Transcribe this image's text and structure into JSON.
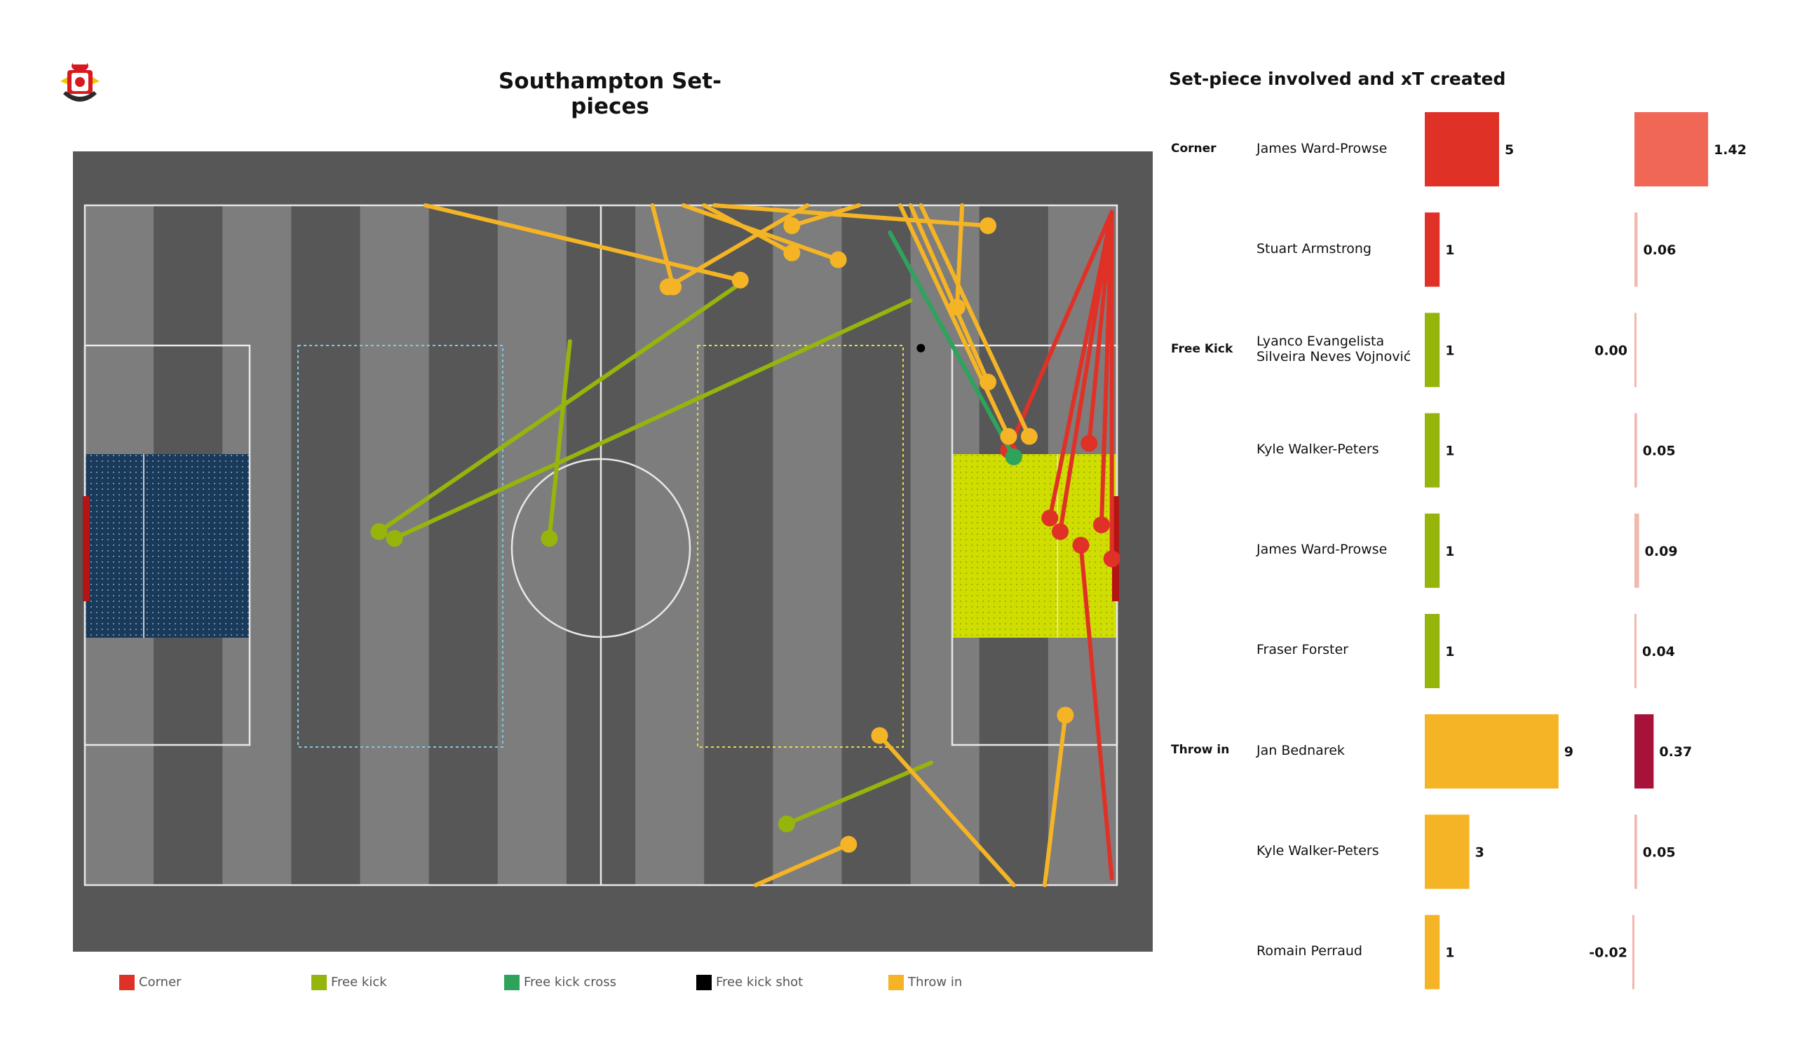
{
  "pitch_title": "Southampton Set-pieces",
  "table_title": "Set-piece involved and xT created",
  "logo": {
    "icon": "southampton-crest-icon"
  },
  "colors": {
    "corner": "#e03127",
    "free_kick": "#95b50d",
    "free_kick_cross": "#2ea35c",
    "free_kick_shot": "#000000",
    "throw_in": "#f4b425",
    "xt_positive_high": "#f06756",
    "xt_low": "#f1b8ac",
    "xt_throw_bednarek": "#a8123a",
    "pitch_outer": "#575757",
    "pitch_dark": "#575757",
    "pitch_light": "#7d7d7d",
    "left_zone": "#1a3a5c",
    "right_zone": "#cfdd00"
  },
  "legend": [
    {
      "label": "Corner",
      "color": "#e03127"
    },
    {
      "label": "Free kick",
      "color": "#95b50d"
    },
    {
      "label": "Free kick cross",
      "color": "#2ea35c"
    },
    {
      "label": "Free kick shot",
      "color": "#000000"
    },
    {
      "label": "Throw in",
      "color": "#f4b425"
    }
  ],
  "chart_data": [
    {
      "type": "scatter",
      "title": "Southampton Set-pieces",
      "x_range": [
        0,
        100
      ],
      "y_range": [
        0,
        100
      ],
      "series": [
        {
          "name": "Corner",
          "color": "#e03127",
          "events": [
            {
              "start": [
                99.5,
                1
              ],
              "end": [
                89.5,
                36
              ]
            },
            {
              "start": [
                99.5,
                1
              ],
              "end": [
                97.3,
                35
              ]
            },
            {
              "start": [
                99.5,
                1
              ],
              "end": [
                93.5,
                46
              ]
            },
            {
              "start": [
                99.5,
                1
              ],
              "end": [
                98.5,
                47
              ]
            },
            {
              "start": [
                99.5,
                1
              ],
              "end": [
                94.5,
                48
              ]
            },
            {
              "start": [
                99.5,
                1
              ],
              "end": [
                99.5,
                52
              ]
            },
            {
              "start": [
                99.5,
                99
              ],
              "end": [
                96.5,
                50
              ]
            }
          ]
        },
        {
          "name": "Free kick",
          "color": "#95b50d",
          "events": [
            {
              "start": [
                80,
                14
              ],
              "end": [
                30,
                49
              ]
            },
            {
              "start": [
                64,
                11
              ],
              "end": [
                28.5,
                48
              ]
            },
            {
              "start": [
                47,
                20
              ],
              "end": [
                45,
                49
              ]
            },
            {
              "start": [
                82,
                82
              ],
              "end": [
                68,
                91
              ]
            }
          ]
        },
        {
          "name": "Free kick cross",
          "color": "#2ea35c",
          "events": [
            {
              "start": [
                78,
                4
              ],
              "end": [
                90,
                37
              ]
            }
          ]
        },
        {
          "name": "Free kick shot",
          "color": "#000000",
          "events": [
            {
              "start": [
                81,
                21
              ],
              "end": [
                81,
                21
              ]
            }
          ]
        },
        {
          "name": "Throw in",
          "color": "#f4b425",
          "events": [
            {
              "start": [
                33,
                0
              ],
              "end": [
                63.5,
                11
              ]
            },
            {
              "start": [
                55,
                0
              ],
              "end": [
                57,
                12
              ]
            },
            {
              "start": [
                75,
                0
              ],
              "end": [
                68.5,
                3
              ]
            },
            {
              "start": [
                58,
                0
              ],
              "end": [
                73,
                8
              ]
            },
            {
              "start": [
                70,
                0
              ],
              "end": [
                56.5,
                12
              ]
            },
            {
              "start": [
                60,
                0
              ],
              "end": [
                68.5,
                7
              ]
            },
            {
              "start": [
                61,
                0
              ],
              "end": [
                87.5,
                3
              ]
            },
            {
              "start": [
                85,
                0
              ],
              "end": [
                84.5,
                15
              ]
            },
            {
              "start": [
                80,
                0
              ],
              "end": [
                87.5,
                26
              ]
            },
            {
              "start": [
                79,
                0
              ],
              "end": [
                89.5,
                34
              ]
            },
            {
              "start": [
                81,
                0
              ],
              "end": [
                91.5,
                34
              ]
            },
            {
              "start": [
                90,
                100
              ],
              "end": [
                77,
                78
              ]
            },
            {
              "start": [
                93,
                100
              ],
              "end": [
                95,
                75
              ]
            },
            {
              "start": [
                65,
                100
              ],
              "end": [
                74,
                94
              ]
            }
          ]
        }
      ]
    },
    {
      "type": "bar",
      "title": "Set-piece involved and xT created",
      "groups": [
        "Corner",
        "Free Kick",
        "Throw in"
      ],
      "rows": [
        {
          "category": "Corner",
          "player": "James  Ward-Prowse",
          "count": 5,
          "count_label": "5",
          "xt": 1.42,
          "xt_label": "1.42",
          "bar_color": "#e03127",
          "xt_color": "#f06756"
        },
        {
          "category": "",
          "player": "Stuart Armstrong",
          "count": 1,
          "count_label": "1",
          "xt": 0.06,
          "xt_label": "0.06",
          "bar_color": "#e03127",
          "xt_color": "#f1b8ac"
        },
        {
          "category": "Free Kick",
          "player": "Lyanco Evangelista\nSilveira Neves Vojnović",
          "count": 1,
          "count_label": "1",
          "xt": 0.0,
          "xt_label": "0.00",
          "bar_color": "#95b50d",
          "xt_color": "#f1b8ac"
        },
        {
          "category": "",
          "player": "Kyle Walker-Peters",
          "count": 1,
          "count_label": "1",
          "xt": 0.05,
          "xt_label": "0.05",
          "bar_color": "#95b50d",
          "xt_color": "#f1b8ac"
        },
        {
          "category": "",
          "player": "James  Ward-Prowse",
          "count": 1,
          "count_label": "1",
          "xt": 0.09,
          "xt_label": "0.09",
          "bar_color": "#95b50d",
          "xt_color": "#f1b8ac"
        },
        {
          "category": "",
          "player": "Fraser Forster",
          "count": 1,
          "count_label": "1",
          "xt": 0.04,
          "xt_label": "0.04",
          "bar_color": "#95b50d",
          "xt_color": "#f1b8ac"
        },
        {
          "category": "Throw in",
          "player": "Jan Bednarek",
          "count": 9,
          "count_label": "9",
          "xt": 0.37,
          "xt_label": "0.37",
          "bar_color": "#f4b425",
          "xt_color": "#a8123a"
        },
        {
          "category": "",
          "player": "Kyle Walker-Peters",
          "count": 3,
          "count_label": "3",
          "xt": 0.05,
          "xt_label": "0.05",
          "bar_color": "#f4b425",
          "xt_color": "#f1b8ac"
        },
        {
          "category": "",
          "player": "Romain Perraud",
          "count": 1,
          "count_label": "1",
          "xt": -0.02,
          "xt_label": "-0.02",
          "bar_color": "#f4b425",
          "xt_color": "#f1b8ac"
        }
      ]
    }
  ]
}
